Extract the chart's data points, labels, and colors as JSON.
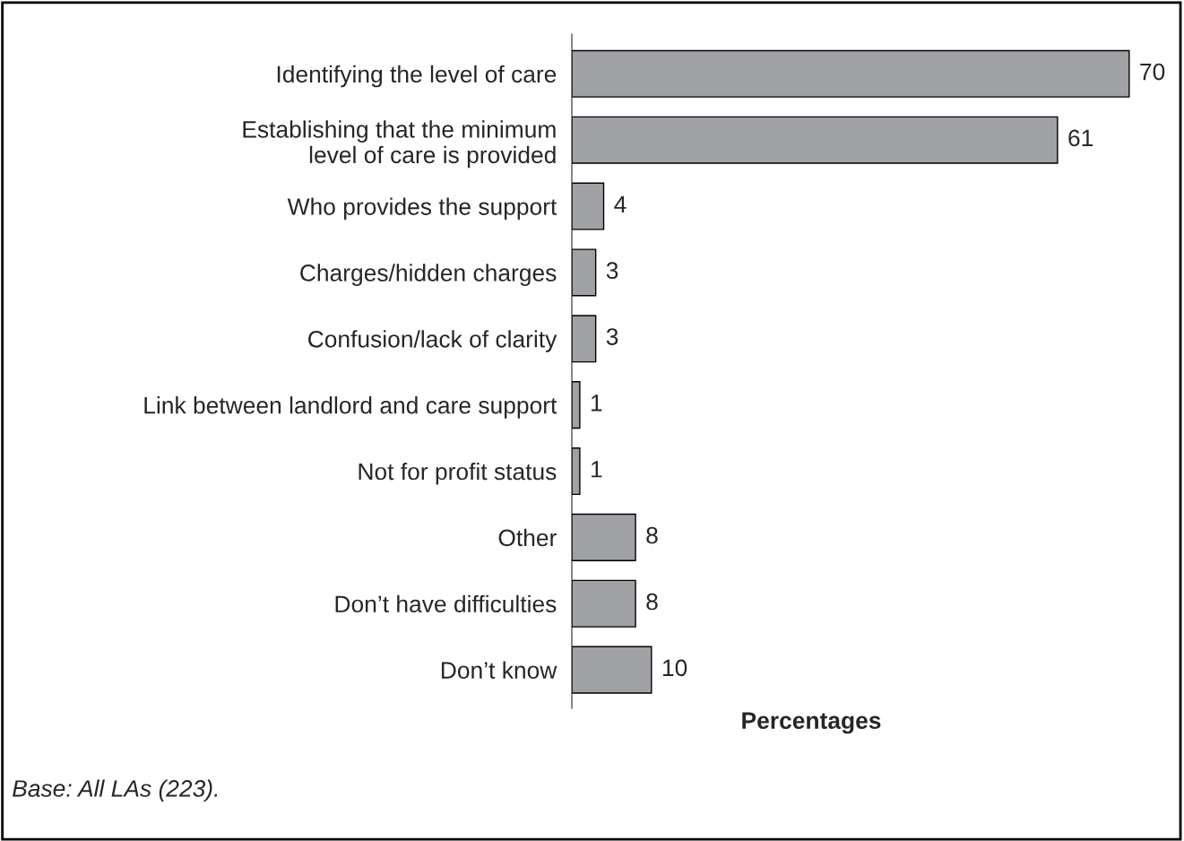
{
  "chart_data": {
    "type": "bar",
    "orientation": "horizontal",
    "data_labels": true,
    "categories": [
      "Identifying the level of care",
      "Establishing that the minimum\nlevel of care is provided",
      "Who provides the support",
      "Charges/hidden charges",
      "Confusion/lack of clarity",
      "Link between landlord and care support",
      "Not for profit status",
      "Other",
      "Don’t have difficulties",
      "Don’t know"
    ],
    "values": [
      70,
      61,
      4,
      3,
      3,
      1,
      1,
      8,
      8,
      10
    ],
    "color": "#a0a1a4",
    "xlabel": "Percentages",
    "annotations": [
      "Base: All LAs (223)."
    ],
    "grid": false,
    "legend": false
  }
}
